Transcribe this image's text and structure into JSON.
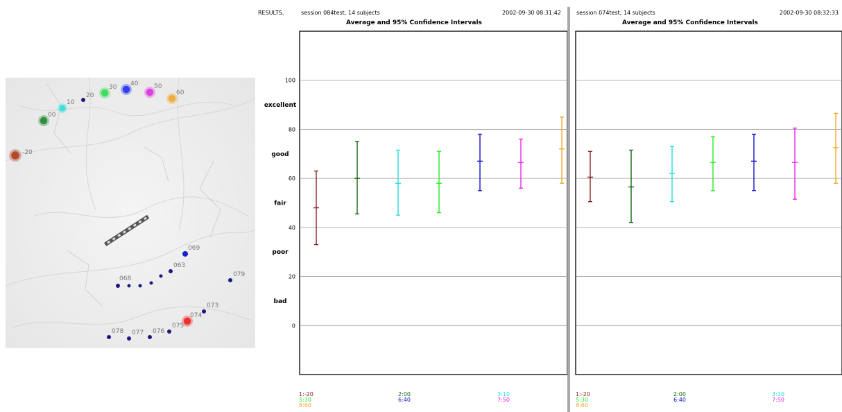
{
  "results_label": "RESULTS,",
  "map": {
    "markers": [
      {
        "label": "-20",
        "color": "#b04020"
      },
      {
        "label": "00",
        "color": "#228833"
      },
      {
        "label": "10",
        "color": "#33dddd"
      },
      {
        "label": "20",
        "color": "#1a1a80"
      },
      {
        "label": "30",
        "color": "#33dd55"
      },
      {
        "label": "40",
        "color": "#2233ee"
      },
      {
        "label": "50",
        "color": "#dd33dd"
      },
      {
        "label": "60",
        "color": "#eeaa33"
      },
      {
        "label": "069",
        "color": "#1122cc"
      },
      {
        "label": "068",
        "color": "#1a1a80"
      },
      {
        "label": "063",
        "color": "#1a1a80"
      },
      {
        "label": "079",
        "color": "#1a1a80"
      },
      {
        "label": "073",
        "color": "#1a1a80"
      },
      {
        "label": "074",
        "color": "#ee2222"
      },
      {
        "label": "075",
        "color": "#1a1a80"
      },
      {
        "label": "076",
        "color": "#1a1a80"
      },
      {
        "label": "077",
        "color": "#1a1a80"
      },
      {
        "label": "078",
        "color": "#1a1a80"
      }
    ]
  },
  "chart_data": [
    {
      "type": "errorbar",
      "session": "session 084test,  14 subjects",
      "timestamp": "2002-09-30 08:31:42",
      "title": "Average and 95% Confidence Intervals",
      "ylim": [
        -20,
        120
      ],
      "yticks": [
        0,
        20,
        40,
        60,
        80,
        100
      ],
      "quality_labels": [
        {
          "label": "excellent",
          "y": 90
        },
        {
          "label": "good",
          "y": 70
        },
        {
          "label": "fair",
          "y": 50
        },
        {
          "label": "poor",
          "y": 30
        },
        {
          "label": "bad",
          "y": 10
        }
      ],
      "grid": true,
      "legend_position": "bottom",
      "series": [
        {
          "name": "1:-20",
          "color": "#8b2222",
          "mean": 48,
          "low": 33,
          "high": 63
        },
        {
          "name": "2:00",
          "color": "#116611",
          "mean": 60,
          "low": 45.5,
          "high": 75
        },
        {
          "name": "3:10",
          "color": "#22dddd",
          "mean": 58,
          "low": 45,
          "high": 71.5
        },
        {
          "name": "5:30",
          "color": "#22ee22",
          "mean": 58,
          "low": 46,
          "high": 71
        },
        {
          "name": "6:40",
          "color": "#1111cc",
          "mean": 67,
          "low": 55,
          "high": 78
        },
        {
          "name": "7:50",
          "color": "#ee22ee",
          "mean": 66.5,
          "low": 56,
          "high": 76
        },
        {
          "name": "8:60",
          "color": "#eeaa22",
          "mean": 72,
          "low": 58,
          "high": 85
        }
      ]
    },
    {
      "type": "errorbar",
      "session": "session 074test,  14 subjects",
      "timestamp": "2002-09-30 08:32:33",
      "title": "Average and 95% Confidence Intervals",
      "ylim": [
        -20,
        120
      ],
      "yticks": [
        0,
        20,
        40,
        60,
        80,
        100
      ],
      "grid": true,
      "legend_position": "bottom",
      "series": [
        {
          "name": "1:-20",
          "color": "#8b2222",
          "mean": 60.5,
          "low": 50.5,
          "high": 71
        },
        {
          "name": "2:00",
          "color": "#116611",
          "mean": 56.5,
          "low": 42,
          "high": 71.5
        },
        {
          "name": "3:10",
          "color": "#22dddd",
          "mean": 62,
          "low": 50.5,
          "high": 73
        },
        {
          "name": "5:30",
          "color": "#22ee22",
          "mean": 66.5,
          "low": 55,
          "high": 77
        },
        {
          "name": "6:40",
          "color": "#1111cc",
          "mean": 67,
          "low": 55,
          "high": 78
        },
        {
          "name": "7:50",
          "color": "#ee22ee",
          "mean": 66.5,
          "low": 51.5,
          "high": 80.5
        },
        {
          "name": "8:60",
          "color": "#eeaa22",
          "mean": 72.5,
          "low": 58,
          "high": 86.5
        }
      ]
    }
  ]
}
